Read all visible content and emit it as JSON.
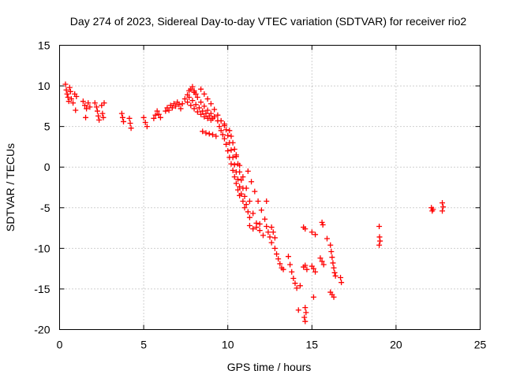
{
  "chart_data": {
    "type": "scatter",
    "title": "Day 274 of 2023, Sidereal Day-to-day VTEC variation (SDTVAR) for receiver rio2",
    "xlabel": "GPS time / hours",
    "ylabel": "SDTVAR / TECUs",
    "xlim": [
      0,
      25
    ],
    "ylim": [
      -20,
      15
    ],
    "xticks": [
      0,
      5,
      10,
      15,
      20,
      25
    ],
    "yticks": [
      -20,
      -15,
      -10,
      -5,
      0,
      5,
      10,
      15
    ],
    "xtick_labels": [
      "0",
      "5",
      "10",
      "15",
      "20",
      "25"
    ],
    "ytick_labels": [
      "-20",
      "-15",
      "-10",
      "-5",
      "0",
      "5",
      "10",
      "15"
    ],
    "grid": true,
    "marker": "+",
    "color": "#ff0000",
    "series": [
      {
        "name": "SDTVAR",
        "points": [
          [
            0.35,
            10.2
          ],
          [
            0.4,
            9.5
          ],
          [
            0.45,
            9.0
          ],
          [
            0.5,
            8.6
          ],
          [
            0.55,
            8.1
          ],
          [
            0.6,
            9.8
          ],
          [
            0.65,
            9.3
          ],
          [
            0.7,
            8.4
          ],
          [
            0.8,
            7.9
          ],
          [
            0.9,
            9.0
          ],
          [
            0.95,
            7.0
          ],
          [
            1.0,
            8.7
          ],
          [
            1.4,
            8.1
          ],
          [
            1.5,
            7.6
          ],
          [
            1.55,
            6.1
          ],
          [
            1.6,
            7.2
          ],
          [
            1.7,
            7.9
          ],
          [
            1.8,
            7.4
          ],
          [
            2.1,
            7.9
          ],
          [
            2.2,
            7.4
          ],
          [
            2.25,
            6.9
          ],
          [
            2.3,
            6.3
          ],
          [
            2.35,
            5.8
          ],
          [
            2.5,
            7.6
          ],
          [
            2.55,
            6.6
          ],
          [
            2.6,
            6.1
          ],
          [
            2.65,
            7.9
          ],
          [
            3.7,
            6.6
          ],
          [
            3.75,
            6.1
          ],
          [
            3.8,
            5.6
          ],
          [
            4.15,
            6.0
          ],
          [
            4.2,
            5.4
          ],
          [
            4.25,
            4.8
          ],
          [
            5.0,
            6.1
          ],
          [
            5.1,
            5.5
          ],
          [
            5.2,
            5.0
          ],
          [
            5.6,
            6.0
          ],
          [
            5.7,
            6.4
          ],
          [
            5.8,
            6.9
          ],
          [
            5.9,
            6.5
          ],
          [
            6.0,
            6.1
          ],
          [
            6.3,
            6.9
          ],
          [
            6.4,
            7.3
          ],
          [
            6.5,
            7.0
          ],
          [
            6.6,
            7.6
          ],
          [
            6.7,
            7.3
          ],
          [
            6.8,
            7.8
          ],
          [
            6.9,
            7.5
          ],
          [
            7.0,
            8.0
          ],
          [
            7.1,
            7.7
          ],
          [
            7.2,
            7.2
          ],
          [
            7.3,
            7.8
          ],
          [
            7.45,
            8.4
          ],
          [
            7.6,
            8.9
          ],
          [
            7.7,
            9.4
          ],
          [
            7.8,
            9.6
          ],
          [
            7.9,
            9.9
          ],
          [
            8.0,
            9.4
          ],
          [
            8.1,
            9.0
          ],
          [
            7.6,
            8.0
          ],
          [
            7.8,
            7.6
          ],
          [
            8.0,
            7.2
          ],
          [
            8.2,
            6.8
          ],
          [
            8.4,
            6.5
          ],
          [
            8.6,
            6.2
          ],
          [
            8.8,
            6.0
          ],
          [
            9.0,
            5.8
          ],
          [
            7.7,
            8.6
          ],
          [
            7.9,
            8.2
          ],
          [
            8.1,
            7.7
          ],
          [
            8.3,
            7.3
          ],
          [
            8.5,
            6.9
          ],
          [
            8.7,
            6.6
          ],
          [
            8.9,
            6.3
          ],
          [
            9.1,
            6.0
          ],
          [
            8.0,
            9.2
          ],
          [
            8.2,
            8.6
          ],
          [
            8.4,
            8.0
          ],
          [
            8.6,
            7.5
          ],
          [
            8.8,
            7.0
          ],
          [
            9.0,
            6.6
          ],
          [
            9.2,
            6.2
          ],
          [
            9.4,
            5.7
          ],
          [
            8.4,
            9.6
          ],
          [
            8.6,
            9.0
          ],
          [
            8.8,
            8.4
          ],
          [
            9.0,
            7.8
          ],
          [
            9.2,
            7.1
          ],
          [
            9.4,
            6.4
          ],
          [
            9.6,
            5.7
          ],
          [
            9.8,
            5.1
          ],
          [
            8.5,
            4.4
          ],
          [
            8.7,
            4.2
          ],
          [
            8.9,
            4.1
          ],
          [
            9.1,
            4.0
          ],
          [
            9.3,
            3.8
          ],
          [
            9.5,
            5.0
          ],
          [
            9.6,
            4.5
          ],
          [
            9.7,
            4.0
          ],
          [
            9.8,
            3.5
          ],
          [
            9.9,
            2.8
          ],
          [
            10.0,
            2.0
          ],
          [
            10.1,
            1.2
          ],
          [
            10.2,
            0.4
          ],
          [
            10.3,
            -0.4
          ],
          [
            10.4,
            -1.2
          ],
          [
            10.5,
            -2.0
          ],
          [
            10.6,
            -2.8
          ],
          [
            10.7,
            -3.5
          ],
          [
            9.8,
            5.3
          ],
          [
            9.9,
            4.6
          ],
          [
            10.0,
            3.9
          ],
          [
            10.1,
            3.0
          ],
          [
            10.2,
            2.1
          ],
          [
            10.3,
            1.2
          ],
          [
            10.4,
            0.3
          ],
          [
            10.5,
            -0.6
          ],
          [
            10.6,
            -1.5
          ],
          [
            10.7,
            -2.4
          ],
          [
            10.8,
            -3.3
          ],
          [
            10.9,
            -4.2
          ],
          [
            11.0,
            -5.0
          ],
          [
            10.1,
            4.5
          ],
          [
            10.2,
            3.8
          ],
          [
            10.3,
            3.0
          ],
          [
            10.4,
            2.2
          ],
          [
            10.5,
            1.3
          ],
          [
            10.6,
            0.4
          ],
          [
            10.7,
            -0.6
          ],
          [
            10.8,
            -1.6
          ],
          [
            10.9,
            -2.6
          ],
          [
            11.0,
            -3.6
          ],
          [
            11.1,
            -4.6
          ],
          [
            11.2,
            -5.5
          ],
          [
            11.3,
            -6.2
          ],
          [
            10.5,
            1.5
          ],
          [
            10.7,
            0.2
          ],
          [
            10.9,
            -1.2
          ],
          [
            11.1,
            -2.6
          ],
          [
            11.3,
            -4.2
          ],
          [
            11.5,
            -5.7
          ],
          [
            11.7,
            -6.9
          ],
          [
            11.9,
            -7.8
          ],
          [
            12.1,
            -8.4
          ],
          [
            11.2,
            -0.5
          ],
          [
            11.4,
            -1.8
          ],
          [
            11.6,
            -3.0
          ],
          [
            11.8,
            -4.2
          ],
          [
            12.0,
            -5.3
          ],
          [
            12.2,
            -6.4
          ],
          [
            11.3,
            -7.2
          ],
          [
            11.5,
            -7.6
          ],
          [
            11.7,
            -7.4
          ],
          [
            11.9,
            -7.0
          ],
          [
            12.3,
            -4.2
          ],
          [
            12.3,
            -7.3
          ],
          [
            12.4,
            -8.0
          ],
          [
            12.5,
            -8.6
          ],
          [
            12.6,
            -9.3
          ],
          [
            12.6,
            -7.4
          ],
          [
            12.7,
            -8.0
          ],
          [
            12.8,
            -8.7
          ],
          [
            12.8,
            -10.0
          ],
          [
            12.9,
            -10.7
          ],
          [
            13.0,
            -11.3
          ],
          [
            13.1,
            -11.9
          ],
          [
            13.2,
            -12.4
          ],
          [
            13.3,
            -12.6
          ],
          [
            13.6,
            -11.0
          ],
          [
            13.7,
            -12.0
          ],
          [
            13.8,
            -12.9
          ],
          [
            13.9,
            -13.7
          ],
          [
            14.0,
            -14.3
          ],
          [
            14.1,
            -14.9
          ],
          [
            14.3,
            -14.6
          ],
          [
            14.2,
            -17.6
          ],
          [
            14.5,
            -7.4
          ],
          [
            14.6,
            -7.6
          ],
          [
            14.5,
            -12.3
          ],
          [
            14.6,
            -12.1
          ],
          [
            14.7,
            -12.6
          ],
          [
            14.6,
            -17.3
          ],
          [
            14.65,
            -17.9
          ],
          [
            14.55,
            -18.5
          ],
          [
            14.6,
            -19.0
          ],
          [
            15.0,
            -12.2
          ],
          [
            15.1,
            -12.5
          ],
          [
            15.2,
            -12.9
          ],
          [
            15.1,
            -16.0
          ],
          [
            15.0,
            -8.0
          ],
          [
            15.2,
            -8.3
          ],
          [
            15.5,
            -11.2
          ],
          [
            15.6,
            -11.6
          ],
          [
            15.7,
            -12.0
          ],
          [
            15.6,
            -6.8
          ],
          [
            15.65,
            -7.1
          ],
          [
            15.9,
            -8.8
          ],
          [
            16.1,
            -9.6
          ],
          [
            16.15,
            -10.4
          ],
          [
            16.2,
            -11.1
          ],
          [
            16.25,
            -11.8
          ],
          [
            16.3,
            -12.4
          ],
          [
            16.35,
            -13.0
          ],
          [
            16.4,
            -13.4
          ],
          [
            16.1,
            -15.4
          ],
          [
            16.2,
            -15.7
          ],
          [
            16.3,
            -16.0
          ],
          [
            16.7,
            -13.6
          ],
          [
            16.75,
            -14.2
          ],
          [
            19.0,
            -7.3
          ],
          [
            19.02,
            -8.6
          ],
          [
            19.05,
            -9.1
          ],
          [
            19.0,
            -9.6
          ],
          [
            22.1,
            -5.0
          ],
          [
            22.15,
            -5.4
          ],
          [
            22.2,
            -5.2
          ],
          [
            22.75,
            -4.4
          ],
          [
            22.8,
            -4.9
          ],
          [
            22.75,
            -5.4
          ]
        ]
      }
    ]
  }
}
